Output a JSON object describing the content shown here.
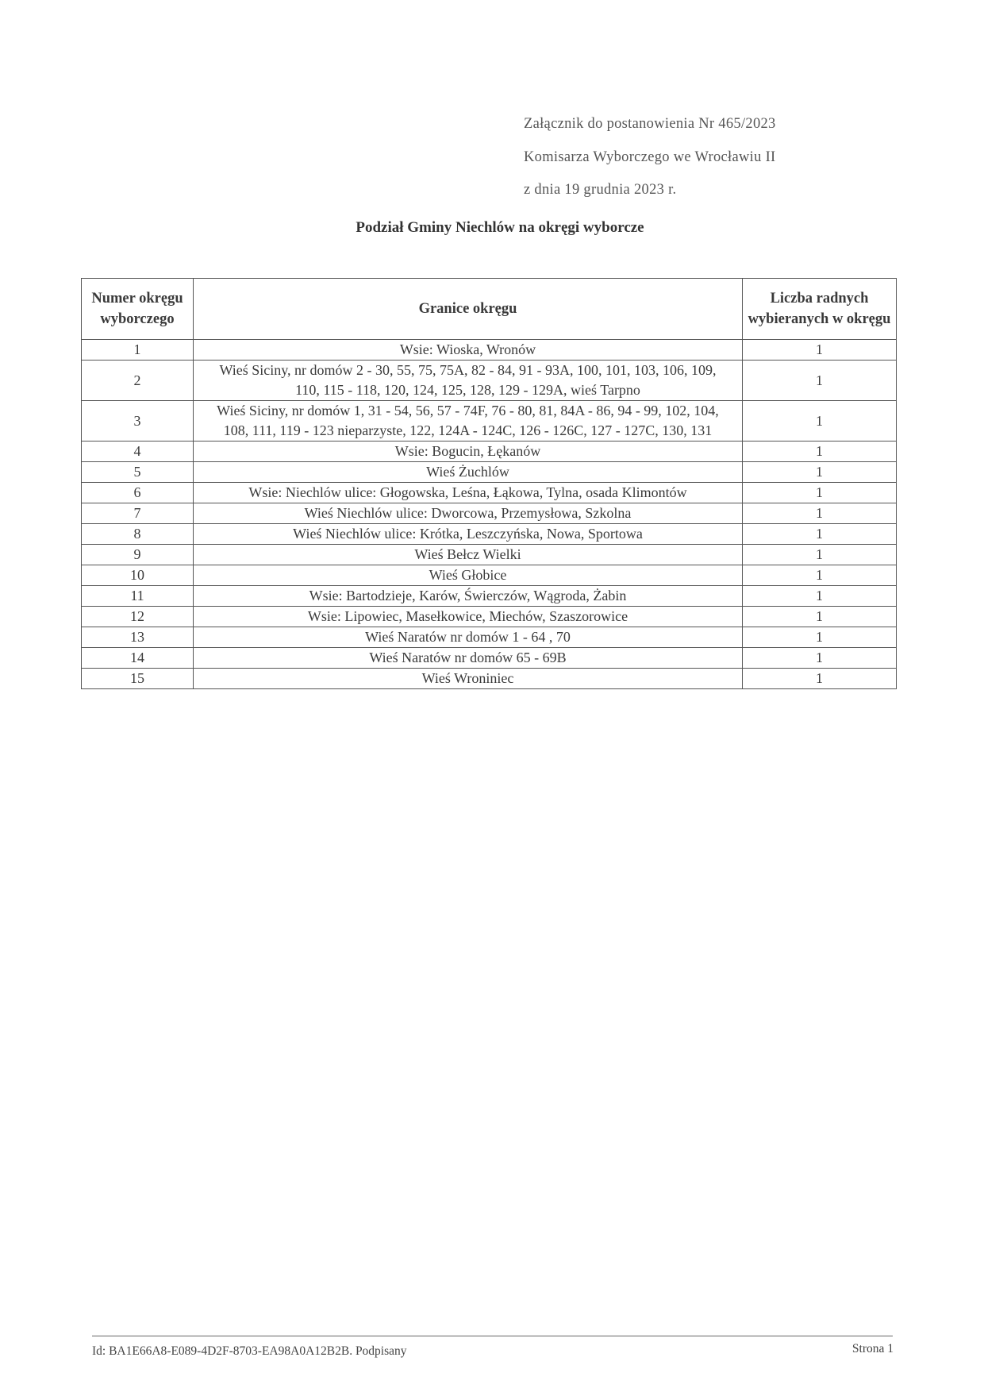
{
  "header": {
    "line1": "Załącznik do postanowienia Nr 465/2023",
    "line2": "Komisarza Wyborczego we Wrocławiu II",
    "line3": "z dnia 19 grudnia 2023 r."
  },
  "title": "Podział Gminy Niechlów na okręgi wyborcze",
  "table": {
    "columns": [
      "Numer okręgu wyborczego",
      "Granice okręgu",
      "Liczba radnych wybieranych w okręgu"
    ],
    "rows": [
      {
        "num": "1",
        "bounds": "Wsie: Wioska, Wronów",
        "count": "1"
      },
      {
        "num": "2",
        "bounds": "Wieś Siciny, nr domów 2 - 30, 55, 75, 75A, 82 - 84, 91 - 93A, 100, 101, 103, 106, 109, 110, 115 - 118, 120, 124, 125, 128, 129 - 129A, wieś Tarpno",
        "count": "1"
      },
      {
        "num": "3",
        "bounds": "Wieś Siciny, nr domów 1, 31 - 54, 56, 57 - 74F, 76 - 80, 81, 84A - 86, 94 - 99, 102, 104, 108, 111, 119 - 123 nieparzyste, 122, 124A - 124C, 126 - 126C, 127 - 127C, 130, 131",
        "count": "1"
      },
      {
        "num": "4",
        "bounds": "Wsie: Bogucin, Łękanów",
        "count": "1"
      },
      {
        "num": "5",
        "bounds": "Wieś Żuchlów",
        "count": "1"
      },
      {
        "num": "6",
        "bounds": "Wsie: Niechlów ulice: Głogowska, Leśna, Łąkowa, Tylna, osada Klimontów",
        "count": "1"
      },
      {
        "num": "7",
        "bounds": "Wieś Niechlów ulice: Dworcowa, Przemysłowa, Szkolna",
        "count": "1"
      },
      {
        "num": "8",
        "bounds": "Wieś Niechlów ulice: Krótka, Leszczyńska, Nowa, Sportowa",
        "count": "1"
      },
      {
        "num": "9",
        "bounds": "Wieś Bełcz Wielki",
        "count": "1"
      },
      {
        "num": "10",
        "bounds": "Wieś Głobice",
        "count": "1"
      },
      {
        "num": "11",
        "bounds": "Wsie: Bartodzieje, Karów, Świerczów, Wągroda, Żabin",
        "count": "1"
      },
      {
        "num": "12",
        "bounds": "Wsie: Lipowiec, Masełkowice, Miechów, Szaszorowice",
        "count": "1"
      },
      {
        "num": "13",
        "bounds": "Wieś Naratów nr domów 1 - 64 , 70",
        "count": "1"
      },
      {
        "num": "14",
        "bounds": "Wieś Naratów nr domów 65 - 69B",
        "count": "1"
      },
      {
        "num": "15",
        "bounds": "Wieś Wroniniec",
        "count": "1"
      }
    ]
  },
  "footer": {
    "id": "Id: BA1E66A8-E089-4D2F-8703-EA98A0A12B2B. Podpisany",
    "page": "Strona 1"
  }
}
